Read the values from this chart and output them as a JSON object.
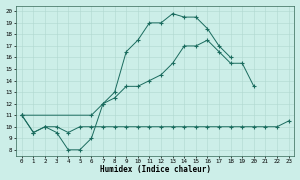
{
  "xlabel": "Humidex (Indice chaleur)",
  "bg_color": "#cceee8",
  "line_color": "#1a6b5e",
  "xlim": [
    -0.5,
    23.5
  ],
  "ylim": [
    7.5,
    20.5
  ],
  "xticks": [
    0,
    1,
    2,
    3,
    4,
    5,
    6,
    7,
    8,
    9,
    10,
    11,
    12,
    13,
    14,
    15,
    16,
    17,
    18,
    19,
    20,
    21,
    22,
    23
  ],
  "yticks": [
    8,
    9,
    10,
    11,
    12,
    13,
    14,
    15,
    16,
    17,
    18,
    19,
    20
  ],
  "line1_x": [
    0,
    1,
    2,
    3,
    4,
    5,
    6,
    7,
    8,
    9,
    10,
    11,
    12,
    13,
    14,
    15,
    16,
    17,
    18,
    19,
    20,
    21,
    22,
    23
  ],
  "line1_y": [
    11,
    9.5,
    10,
    10,
    9.5,
    10,
    10,
    10,
    10,
    10,
    10,
    10,
    10,
    10,
    10,
    10,
    10,
    10,
    10,
    10,
    10,
    10,
    10,
    10.5
  ],
  "line2_x": [
    0,
    1,
    2,
    3,
    4,
    5,
    6,
    7,
    8,
    9,
    10,
    11,
    12,
    13,
    14,
    15,
    16,
    17,
    18,
    19,
    20,
    21,
    22,
    23
  ],
  "line2_y": [
    11,
    9.5,
    10,
    9.5,
    8,
    8,
    9,
    12,
    13,
    16.5,
    17.5,
    19,
    19,
    19.8,
    19.5,
    19.5,
    18.5,
    17,
    16,
    null,
    null,
    null,
    null,
    null
  ],
  "line3_x": [
    0,
    6,
    7,
    8,
    9,
    10,
    11,
    12,
    13,
    14,
    15,
    16,
    17,
    18,
    19,
    20,
    21,
    22,
    23
  ],
  "line3_y": [
    11,
    11,
    12,
    12.5,
    13.5,
    13.5,
    14,
    14.5,
    15.5,
    17,
    17,
    17.5,
    16.5,
    15.5,
    15.5,
    13.5,
    null,
    null,
    null
  ]
}
